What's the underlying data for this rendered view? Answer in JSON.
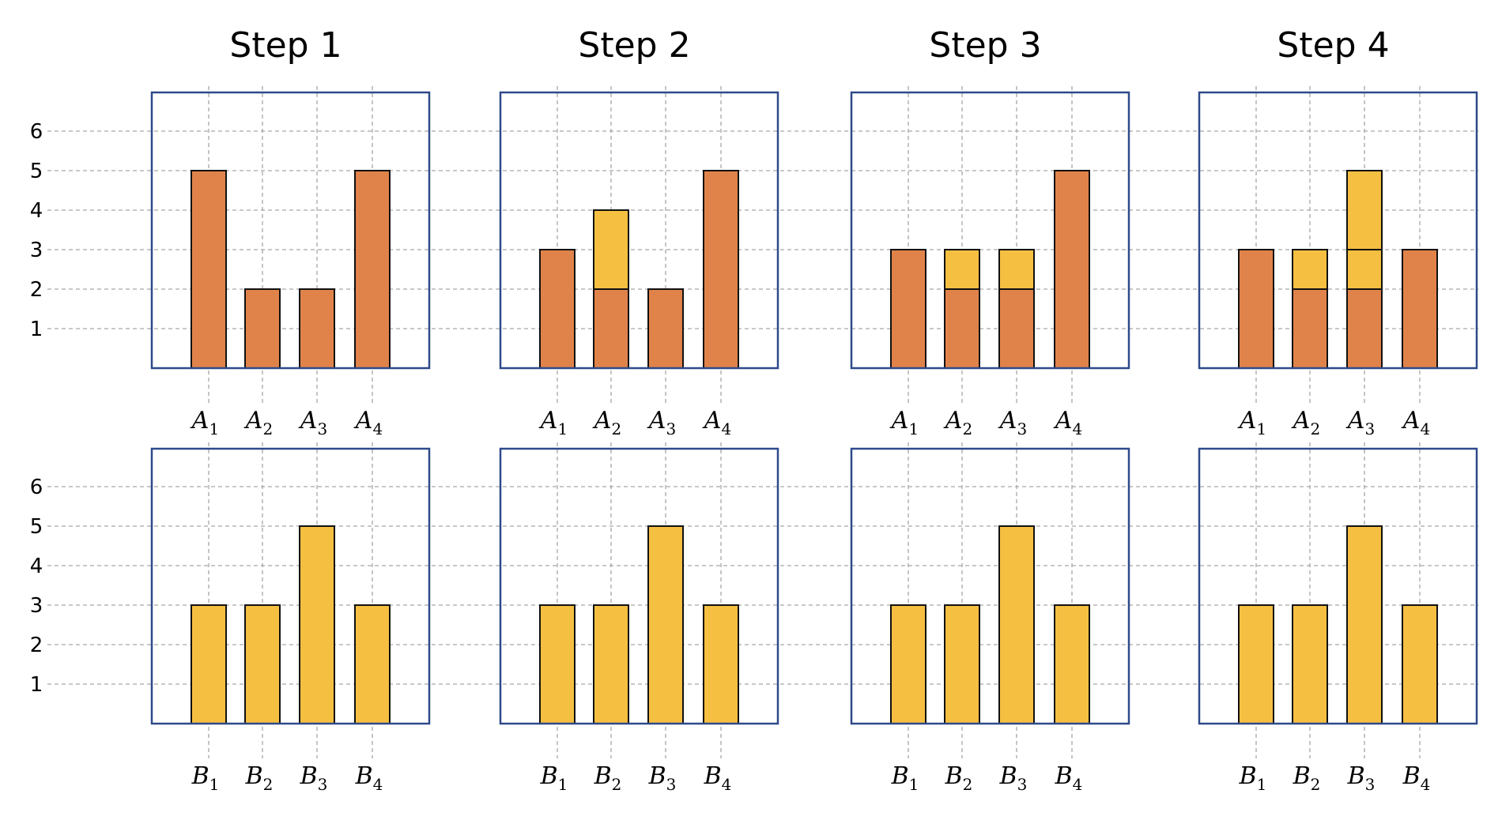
{
  "colors": {
    "orange": "#e0834a",
    "yellow": "#f5bf42",
    "frame": "#2f4a8a",
    "grid": "#a6a6a6"
  },
  "y_ticks": [
    "1",
    "2",
    "3",
    "4",
    "5",
    "6"
  ],
  "chart_data": [
    {
      "type": "bar",
      "title": "Step 1",
      "label_letter": "A",
      "label_subs": [
        "1",
        "2",
        "3",
        "4"
      ],
      "series": [
        {
          "color": "orange",
          "values": [
            5,
            2,
            2,
            5
          ]
        },
        {
          "color": "yellow",
          "values": [
            0,
            0,
            0,
            0
          ]
        }
      ],
      "ylim": [
        0,
        7
      ],
      "grid": true
    },
    {
      "type": "bar",
      "title": "Step 2",
      "label_letter": "A",
      "label_subs": [
        "1",
        "2",
        "3",
        "4"
      ],
      "series": [
        {
          "color": "orange",
          "values": [
            3,
            2,
            2,
            5
          ]
        },
        {
          "color": "yellow",
          "values": [
            0,
            2,
            0,
            0
          ]
        }
      ],
      "ylim": [
        0,
        7
      ],
      "grid": true
    },
    {
      "type": "bar",
      "title": "Step 3",
      "label_letter": "A",
      "label_subs": [
        "1",
        "2",
        "3",
        "4"
      ],
      "series": [
        {
          "color": "orange",
          "values": [
            3,
            2,
            2,
            5
          ]
        },
        {
          "color": "yellow",
          "values": [
            0,
            1,
            1,
            0
          ]
        }
      ],
      "ylim": [
        0,
        7
      ],
      "grid": true
    },
    {
      "type": "bar",
      "title": "Step 4",
      "label_letter": "A",
      "label_subs": [
        "1",
        "2",
        "3",
        "4"
      ],
      "series": [
        {
          "color": "orange",
          "values": [
            3,
            2,
            2,
            3
          ]
        },
        {
          "color": "yellow",
          "values": [
            0,
            1,
            1,
            0
          ]
        },
        {
          "color": "yellow",
          "values": [
            0,
            0,
            2,
            0
          ]
        }
      ],
      "ylim": [
        0,
        7
      ],
      "grid": true
    },
    {
      "type": "bar",
      "title": "",
      "label_letter": "B",
      "label_subs": [
        "1",
        "2",
        "3",
        "4"
      ],
      "series": [
        {
          "color": "yellow",
          "values": [
            3,
            3,
            5,
            3
          ]
        }
      ],
      "ylim": [
        0,
        7
      ],
      "grid": true
    },
    {
      "type": "bar",
      "title": "",
      "label_letter": "B",
      "label_subs": [
        "1",
        "2",
        "3",
        "4"
      ],
      "series": [
        {
          "color": "yellow",
          "values": [
            3,
            3,
            5,
            3
          ]
        }
      ],
      "ylim": [
        0,
        7
      ],
      "grid": true
    },
    {
      "type": "bar",
      "title": "",
      "label_letter": "B",
      "label_subs": [
        "1",
        "2",
        "3",
        "4"
      ],
      "series": [
        {
          "color": "yellow",
          "values": [
            3,
            3,
            5,
            3
          ]
        }
      ],
      "ylim": [
        0,
        7
      ],
      "grid": true
    },
    {
      "type": "bar",
      "title": "",
      "label_letter": "B",
      "label_subs": [
        "1",
        "2",
        "3",
        "4"
      ],
      "series": [
        {
          "color": "yellow",
          "values": [
            3,
            3,
            5,
            3
          ]
        }
      ],
      "ylim": [
        0,
        7
      ],
      "grid": true
    }
  ]
}
